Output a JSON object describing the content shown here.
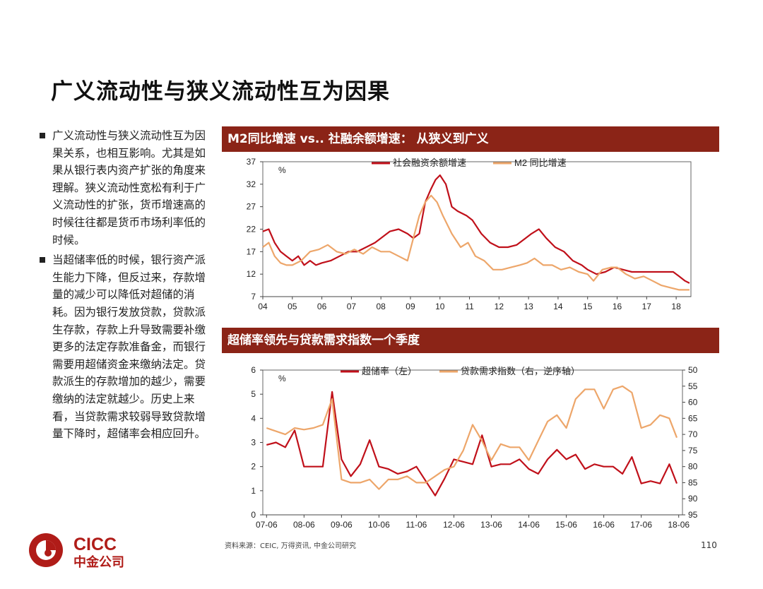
{
  "page": {
    "title": "广义流动性与狭义流动性互为因果",
    "bullets": [
      "广义流动性与狭义流动性互为因果关系，也相互影响。尤其是如果从银行表内资产扩张的角度来理解。狭义流动性宽松有利于广义流动性的扩张，货币增速高的时候往往都是货币市场利率低的时候。",
      "当超储率低的时候，银行资产派生能力下降，但反过来，存款增量的减少可以降低对超储的消耗。因为银行发放贷款，贷款派生存款，存款上升导致需要补缴更多的法定存款准备金，而银行需要用超储资金来缴纳法定。贷款派生的存款增加的越少，需要缴纳的法定就越少。历史上来看，当贷款需求较弱导致贷款增量下降时，超储率会相应回升。"
    ],
    "source": "资料来源：CEIC, 万得资讯, 中金公司研究",
    "page_number": "110",
    "logo": {
      "text": "CICC",
      "subtext": "中金公司"
    },
    "colors": {
      "header_bg": "#8b2417",
      "dark_red": "#c0101a",
      "orange": "#eda66a"
    }
  },
  "chart_data": [
    {
      "type": "line",
      "title": "M2同比增速 vs.. 社融余额增速： 从狭义到广义",
      "unit": "%",
      "ylim": [
        7,
        37
      ],
      "yticks": [
        7,
        12,
        17,
        22,
        27,
        32,
        37
      ],
      "xlim": [
        2004,
        2018.5
      ],
      "xticks": [
        {
          "v": 2004,
          "l": "04"
        },
        {
          "v": 2005,
          "l": "05"
        },
        {
          "v": 2006,
          "l": "06"
        },
        {
          "v": 2007,
          "l": "07"
        },
        {
          "v": 2008,
          "l": "08"
        },
        {
          "v": 2009,
          "l": "09"
        },
        {
          "v": 2010,
          "l": "10"
        },
        {
          "v": 2011,
          "l": "11"
        },
        {
          "v": 2012,
          "l": "12"
        },
        {
          "v": 2013,
          "l": "13"
        },
        {
          "v": 2014,
          "l": "14"
        },
        {
          "v": 2015,
          "l": "15"
        },
        {
          "v": 2016,
          "l": "16"
        },
        {
          "v": 2017,
          "l": "17"
        },
        {
          "v": 2018,
          "l": "18"
        }
      ],
      "legend_position": "top",
      "series": [
        {
          "name": "社会融资余额增速",
          "color": "#c0101a",
          "points": [
            [
              2004.0,
              21.5
            ],
            [
              2004.2,
              22
            ],
            [
              2004.4,
              19
            ],
            [
              2004.6,
              17
            ],
            [
              2004.8,
              16
            ],
            [
              2005.0,
              15
            ],
            [
              2005.2,
              16
            ],
            [
              2005.4,
              14
            ],
            [
              2005.6,
              15
            ],
            [
              2005.8,
              14
            ],
            [
              2006.0,
              14.5
            ],
            [
              2006.3,
              15
            ],
            [
              2006.6,
              16
            ],
            [
              2006.9,
              17
            ],
            [
              2007.2,
              17
            ],
            [
              2007.5,
              18
            ],
            [
              2007.8,
              19
            ],
            [
              2008.0,
              20
            ],
            [
              2008.3,
              21.5
            ],
            [
              2008.6,
              22
            ],
            [
              2008.9,
              21
            ],
            [
              2009.1,
              20
            ],
            [
              2009.3,
              21
            ],
            [
              2009.5,
              28
            ],
            [
              2009.7,
              31
            ],
            [
              2009.85,
              33
            ],
            [
              2010.0,
              34
            ],
            [
              2010.2,
              32
            ],
            [
              2010.4,
              27
            ],
            [
              2010.6,
              26
            ],
            [
              2010.9,
              25
            ],
            [
              2011.1,
              24
            ],
            [
              2011.4,
              21
            ],
            [
              2011.7,
              19
            ],
            [
              2012.0,
              18
            ],
            [
              2012.3,
              18
            ],
            [
              2012.6,
              18.5
            ],
            [
              2012.9,
              20
            ],
            [
              2013.1,
              21
            ],
            [
              2013.35,
              22
            ],
            [
              2013.6,
              20
            ],
            [
              2013.9,
              18
            ],
            [
              2014.2,
              17
            ],
            [
              2014.5,
              15
            ],
            [
              2014.8,
              14
            ],
            [
              2015.0,
              13
            ],
            [
              2015.3,
              12
            ],
            [
              2015.6,
              12.5
            ],
            [
              2015.9,
              13.5
            ],
            [
              2016.2,
              13
            ],
            [
              2016.5,
              12.5
            ],
            [
              2016.8,
              12.5
            ],
            [
              2017.0,
              12.5
            ],
            [
              2017.3,
              12.5
            ],
            [
              2017.6,
              12.5
            ],
            [
              2017.9,
              12.5
            ],
            [
              2018.1,
              11.5
            ],
            [
              2018.3,
              10.5
            ],
            [
              2018.45,
              10
            ]
          ]
        },
        {
          "name": "M2 同比增速",
          "color": "#eda66a",
          "points": [
            [
              2004.0,
              18
            ],
            [
              2004.2,
              19
            ],
            [
              2004.4,
              16
            ],
            [
              2004.6,
              14.5
            ],
            [
              2004.8,
              14
            ],
            [
              2005.0,
              14
            ],
            [
              2005.3,
              15
            ],
            [
              2005.6,
              17
            ],
            [
              2005.9,
              17.5
            ],
            [
              2006.2,
              18.5
            ],
            [
              2006.5,
              17
            ],
            [
              2006.8,
              16.5
            ],
            [
              2007.1,
              17.5
            ],
            [
              2007.4,
              16.5
            ],
            [
              2007.7,
              18
            ],
            [
              2008.0,
              17
            ],
            [
              2008.3,
              17
            ],
            [
              2008.6,
              16
            ],
            [
              2008.9,
              15
            ],
            [
              2009.1,
              20
            ],
            [
              2009.3,
              25
            ],
            [
              2009.5,
              28
            ],
            [
              2009.7,
              29.5
            ],
            [
              2009.9,
              28
            ],
            [
              2010.1,
              25
            ],
            [
              2010.4,
              21
            ],
            [
              2010.7,
              18
            ],
            [
              2010.95,
              19
            ],
            [
              2011.2,
              16
            ],
            [
              2011.5,
              15
            ],
            [
              2011.8,
              13
            ],
            [
              2012.1,
              13
            ],
            [
              2012.4,
              13.5
            ],
            [
              2012.7,
              14
            ],
            [
              2012.95,
              14.5
            ],
            [
              2013.2,
              15.5
            ],
            [
              2013.5,
              14
            ],
            [
              2013.8,
              14
            ],
            [
              2014.1,
              13
            ],
            [
              2014.4,
              13.5
            ],
            [
              2014.7,
              12.5
            ],
            [
              2015.0,
              12
            ],
            [
              2015.2,
              10.5
            ],
            [
              2015.5,
              13
            ],
            [
              2015.8,
              13.5
            ],
            [
              2016.0,
              13.5
            ],
            [
              2016.3,
              12
            ],
            [
              2016.6,
              11
            ],
            [
              2016.9,
              11.5
            ],
            [
              2017.2,
              10.5
            ],
            [
              2017.5,
              9.5
            ],
            [
              2017.8,
              9
            ],
            [
              2018.1,
              8.5
            ],
            [
              2018.3,
              8.5
            ],
            [
              2018.45,
              8.5
            ]
          ]
        }
      ]
    },
    {
      "type": "line",
      "title": "超储率领先与贷款需求指数一个季度",
      "unit": "%",
      "ylim": [
        0,
        6
      ],
      "yticks": [
        0,
        1,
        2,
        3,
        4,
        5,
        6
      ],
      "y2lim": [
        95,
        50
      ],
      "y2ticks": [
        50,
        55,
        60,
        65,
        70,
        75,
        80,
        85,
        90,
        95
      ],
      "y2_inverted": true,
      "xlim": [
        2007.4,
        2018.6
      ],
      "xticks": [
        {
          "v": 2007.5,
          "l": "07-06"
        },
        {
          "v": 2008.5,
          "l": "08-06"
        },
        {
          "v": 2009.5,
          "l": "09-06"
        },
        {
          "v": 2010.5,
          "l": "10-06"
        },
        {
          "v": 2011.5,
          "l": "11-06"
        },
        {
          "v": 2012.5,
          "l": "12-06"
        },
        {
          "v": 2013.5,
          "l": "13-06"
        },
        {
          "v": 2014.5,
          "l": "14-06"
        },
        {
          "v": 2015.5,
          "l": "15-06"
        },
        {
          "v": 2016.5,
          "l": "16-06"
        },
        {
          "v": 2017.5,
          "l": "17-06"
        },
        {
          "v": 2018.5,
          "l": "18-06"
        }
      ],
      "legend_position": "top",
      "series": [
        {
          "name": "超储率（左）",
          "color": "#c0101a",
          "axis": "left",
          "points": [
            [
              2007.5,
              2.9
            ],
            [
              2007.75,
              3.0
            ],
            [
              2008.0,
              2.8
            ],
            [
              2008.25,
              3.5
            ],
            [
              2008.5,
              2.0
            ],
            [
              2008.75,
              2.0
            ],
            [
              2009.0,
              2.0
            ],
            [
              2009.25,
              5.1
            ],
            [
              2009.5,
              2.3
            ],
            [
              2009.75,
              1.6
            ],
            [
              2010.0,
              2.1
            ],
            [
              2010.25,
              3.1
            ],
            [
              2010.5,
              2.0
            ],
            [
              2010.75,
              1.9
            ],
            [
              2011.0,
              1.7
            ],
            [
              2011.25,
              1.8
            ],
            [
              2011.5,
              2.0
            ],
            [
              2011.75,
              1.4
            ],
            [
              2012.0,
              0.8
            ],
            [
              2012.25,
              1.5
            ],
            [
              2012.5,
              2.3
            ],
            [
              2012.75,
              2.2
            ],
            [
              2013.0,
              2.1
            ],
            [
              2013.25,
              3.3
            ],
            [
              2013.5,
              2.0
            ],
            [
              2013.75,
              2.1
            ],
            [
              2014.0,
              2.1
            ],
            [
              2014.25,
              2.3
            ],
            [
              2014.5,
              1.9
            ],
            [
              2014.75,
              1.7
            ],
            [
              2015.0,
              2.3
            ],
            [
              2015.25,
              2.7
            ],
            [
              2015.5,
              2.3
            ],
            [
              2015.75,
              2.5
            ],
            [
              2016.0,
              1.9
            ],
            [
              2016.25,
              2.1
            ],
            [
              2016.5,
              2.0
            ],
            [
              2016.75,
              2.0
            ],
            [
              2017.0,
              1.7
            ],
            [
              2017.25,
              2.4
            ],
            [
              2017.5,
              1.3
            ],
            [
              2017.75,
              1.4
            ],
            [
              2018.0,
              1.3
            ],
            [
              2018.25,
              2.1
            ],
            [
              2018.45,
              1.3
            ]
          ]
        },
        {
          "name": "贷款需求指数（右，逆序轴）",
          "color": "#eda66a",
          "axis": "right",
          "points": [
            [
              2007.5,
              68
            ],
            [
              2007.75,
              69
            ],
            [
              2008.0,
              70
            ],
            [
              2008.25,
              68
            ],
            [
              2008.5,
              68.5
            ],
            [
              2008.75,
              68
            ],
            [
              2009.0,
              67
            ],
            [
              2009.25,
              59
            ],
            [
              2009.5,
              84
            ],
            [
              2009.75,
              85
            ],
            [
              2010.0,
              85
            ],
            [
              2010.25,
              84
            ],
            [
              2010.5,
              87
            ],
            [
              2010.75,
              84
            ],
            [
              2011.0,
              84
            ],
            [
              2011.25,
              83
            ],
            [
              2011.5,
              85
            ],
            [
              2011.75,
              85
            ],
            [
              2012.0,
              83
            ],
            [
              2012.25,
              81
            ],
            [
              2012.5,
              80
            ],
            [
              2012.75,
              75
            ],
            [
              2013.0,
              67
            ],
            [
              2013.25,
              72
            ],
            [
              2013.5,
              78
            ],
            [
              2013.75,
              73
            ],
            [
              2014.0,
              74
            ],
            [
              2014.25,
              74
            ],
            [
              2014.5,
              78
            ],
            [
              2014.75,
              72
            ],
            [
              2015.0,
              66
            ],
            [
              2015.25,
              64
            ],
            [
              2015.5,
              68
            ],
            [
              2015.75,
              59
            ],
            [
              2016.0,
              56
            ],
            [
              2016.25,
              56
            ],
            [
              2016.5,
              62
            ],
            [
              2016.75,
              56
            ],
            [
              2017.0,
              55
            ],
            [
              2017.25,
              57
            ],
            [
              2017.5,
              68
            ],
            [
              2017.75,
              67
            ],
            [
              2018.0,
              64
            ],
            [
              2018.25,
              65
            ],
            [
              2018.45,
              71
            ]
          ]
        }
      ]
    }
  ]
}
